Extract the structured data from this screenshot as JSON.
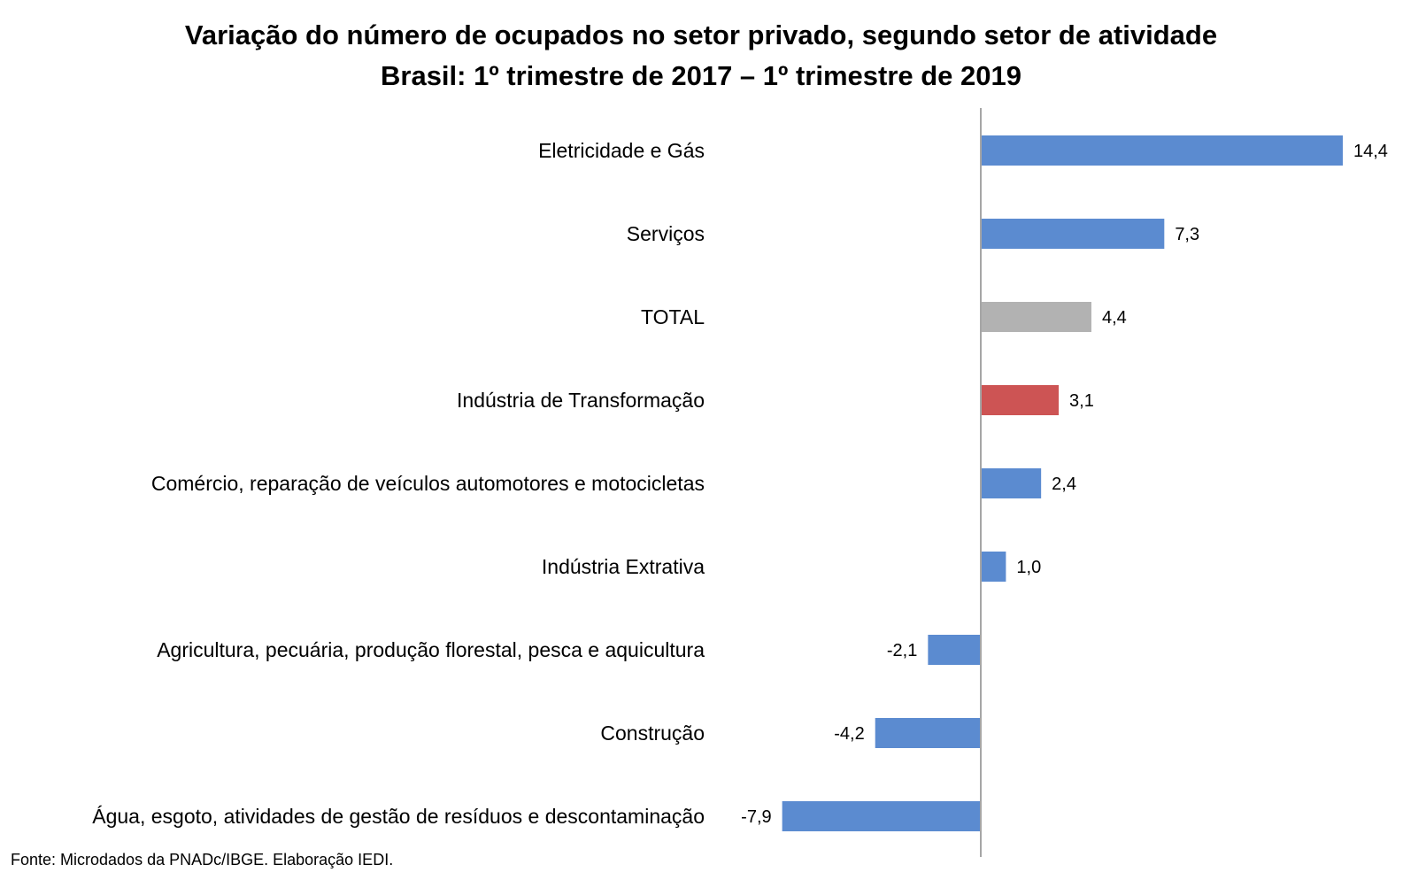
{
  "chart_data": {
    "type": "bar",
    "orientation": "horizontal",
    "title": "Variação do número de ocupados no setor privado, segundo setor de atividade",
    "subtitle": "Brasil: 1º trimestre de 2017 – 1º trimestre de 2019",
    "xlabel": "",
    "ylabel": "",
    "xlim": [
      -8.5,
      15.5
    ],
    "grid": false,
    "legend": "none",
    "categories": [
      "Eletricidade e Gás",
      "Serviços",
      "TOTAL",
      "Indústria de Transformação",
      "Comércio, reparação de veículos automotores e motocicletas",
      "Indústria Extrativa",
      "Agricultura, pecuária, produção florestal, pesca e aquicultura",
      "Construção",
      "Água, esgoto, atividades de gestão de resíduos e descontaminação"
    ],
    "values": [
      14.4,
      7.3,
      4.4,
      3.1,
      2.4,
      1.0,
      -2.1,
      -4.2,
      -7.9
    ],
    "value_labels": [
      "14,4",
      "7,3",
      "4,4",
      "3,1",
      "2,4",
      "1,0",
      "-2,1",
      "-4,2",
      "-7,9"
    ],
    "bar_colors": [
      "#5b8bd0",
      "#5b8bd0",
      "#b2b2b2",
      "#cd5454",
      "#5b8bd0",
      "#5b8bd0",
      "#5b8bd0",
      "#5b8bd0",
      "#5b8bd0"
    ],
    "axis_color": "#a6a6a6"
  },
  "footer": {
    "source": "Fonte: Microdados da PNADc/IBGE. Elaboração IEDI."
  }
}
